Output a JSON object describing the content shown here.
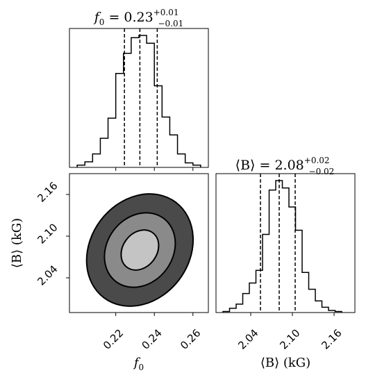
{
  "chart_data": [
    {
      "type": "histogram",
      "title_main": "f",
      "title_sub": "0",
      "title_eq": " = 0.23",
      "title_plus": "+0.01",
      "title_minus": "−0.01",
      "xlim": [
        0.196,
        0.268
      ],
      "bin_edges": [
        0.2,
        0.204,
        0.208,
        0.212,
        0.216,
        0.22,
        0.224,
        0.228,
        0.232,
        0.236,
        0.24,
        0.244,
        0.248,
        0.252,
        0.256,
        0.26,
        0.264
      ],
      "counts": [
        2,
        5,
        12,
        26,
        44,
        84,
        102,
        116,
        118,
        111,
        73,
        45,
        29,
        12,
        4,
        2
      ],
      "quantiles": [
        0.2245,
        0.2325,
        0.2415
      ],
      "xticks": [
        0.22,
        0.24,
        0.26
      ]
    },
    {
      "type": "histogram",
      "title_main": "⟨B⟩",
      "title_eq": " = 2.08",
      "title_plus": "+0.02",
      "title_minus": "−0.02",
      "xlim": [
        1.99,
        2.19
      ],
      "bin_edges": [
        2.0,
        2.0095,
        2.019,
        2.0285,
        2.038,
        2.0475,
        2.057,
        2.0665,
        2.076,
        2.0855,
        2.095,
        2.1045,
        2.114,
        2.1235,
        2.133,
        2.1425,
        2.152,
        2.1615,
        2.171
      ],
      "counts": [
        1,
        4,
        8,
        18,
        28,
        40,
        74,
        116,
        125,
        118,
        100,
        78,
        38,
        22,
        11,
        5,
        2,
        1
      ],
      "quantiles": [
        2.054,
        2.081,
        2.104
      ],
      "xticks": [
        2.04,
        2.1,
        2.16
      ],
      "xticklabels": [
        "2.04",
        "2.10",
        "2.16"
      ],
      "xlabel": "⟨B⟩ (kG)"
    },
    {
      "type": "contour",
      "xlim": [
        0.196,
        0.268
      ],
      "ylim": [
        1.99,
        2.19
      ],
      "center": [
        0.2325,
        2.08
      ],
      "levels": [
        {
          "rx": 0.0088,
          "ry": 0.031,
          "fill": "#a9a9a9"
        },
        {
          "rx": 0.017,
          "ry": 0.057,
          "fill": "#5e5e5e"
        },
        {
          "rx": 0.0255,
          "ry": 0.086,
          "fill": "#2e2e2e"
        }
      ],
      "contour_fills": [
        "#c4c4c4",
        "#8a8a8a",
        "#4a4a4a"
      ],
      "xticks": [
        0.22,
        0.24,
        0.26
      ],
      "xticklabels": [
        "0.22",
        "0.24",
        "0.26"
      ],
      "yticks": [
        2.04,
        2.1,
        2.16
      ],
      "yticklabels": [
        "2.04",
        "2.10",
        "2.16"
      ],
      "xlabel_main": "f",
      "xlabel_sub": "0",
      "ylabel": "⟨B⟩ (kG)"
    }
  ]
}
